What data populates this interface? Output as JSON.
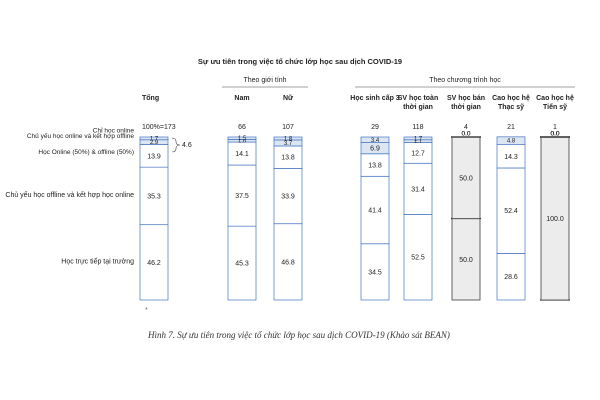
{
  "chart_data": {
    "type": "bar",
    "stacked": true,
    "title": "Sự ưu tiên trong việc tổ chức lớp học sau dịch COVID-19",
    "groups": [
      {
        "label": "Theo giới tính",
        "columns": [
          1,
          2
        ]
      },
      {
        "label": "Theo chương trình học",
        "columns": [
          3,
          4,
          5,
          6,
          7
        ]
      }
    ],
    "categories": [
      {
        "label": "Tổng",
        "n": "100%=173"
      },
      {
        "label": "Nam",
        "n": "66"
      },
      {
        "label": "Nữ",
        "n": "107"
      },
      {
        "label": "Học sinh cấp 3",
        "n": "29"
      },
      {
        "label": "SV học toàn thời gian",
        "n": "118"
      },
      {
        "label": "SV học bán thời gian",
        "n": "4"
      },
      {
        "label": "Cao học hệ Thạc sỹ",
        "n": "21"
      },
      {
        "label": "Cao học hệ Tiến sỹ",
        "n": "1"
      }
    ],
    "series": [
      {
        "name": "Học trực tiếp tại trường",
        "values": [
          46.2,
          45.3,
          46.8,
          34.5,
          52.5,
          50.0,
          28.6,
          0.0
        ],
        "labels": [
          "46.2",
          "45.3",
          "46.8",
          "34.5",
          "52.5",
          "50.0",
          "28.6",
          "0.0"
        ]
      },
      {
        "name": "Chủ yếu học offline và kết hợp học online",
        "values": [
          35.3,
          37.5,
          33.9,
          41.4,
          31.4,
          0.0,
          52.4,
          100.0
        ],
        "labels": [
          "35.3",
          "37.5",
          "33.9",
          "41.4",
          "31.4",
          "0.0",
          "52.4",
          "100.0"
        ]
      },
      {
        "name": "Học Online (50%) & offline (50%)",
        "values": [
          13.9,
          14.1,
          13.8,
          13.8,
          12.7,
          50.0,
          14.3,
          0.0
        ],
        "labels": [
          "13.9",
          "14.1",
          "13.8",
          "13.8",
          "12.7",
          "50.0",
          "14.3",
          "0.0"
        ]
      },
      {
        "name": "Chủ yếu học online và kết hợp offline",
        "values": [
          2.9,
          1.6,
          3.7,
          6.9,
          1.7,
          0.0,
          4.8,
          0.0
        ],
        "labels": [
          "2.9",
          "1.6",
          "3.7",
          "6.9",
          "1.7",
          "0.0",
          "4.8",
          "0.0"
        ]
      },
      {
        "name": "Chỉ học online",
        "values": [
          1.7,
          1.5,
          1.8,
          3.4,
          1.7,
          0.0,
          0.0,
          0.0
        ],
        "labels": [
          "1.7",
          "1.5",
          "1.8",
          "3.4",
          "1.7",
          "0.0",
          "0.0",
          "0.0"
        ]
      }
    ],
    "bracket_label": "4.6",
    "ylim": [
      0,
      100
    ],
    "grid": false,
    "legend": "left-labels",
    "colors": {
      "segment": "#ffffff",
      "small_segment": "#dce6f2",
      "shaded": "#ececec",
      "border": "#4472c4"
    }
  },
  "caption": "Hình 7. Sự ưu tiên trong việc tổ chức lớp học sau dịch COVID-19 (Khảo sát BEAN)",
  "marker": "*"
}
